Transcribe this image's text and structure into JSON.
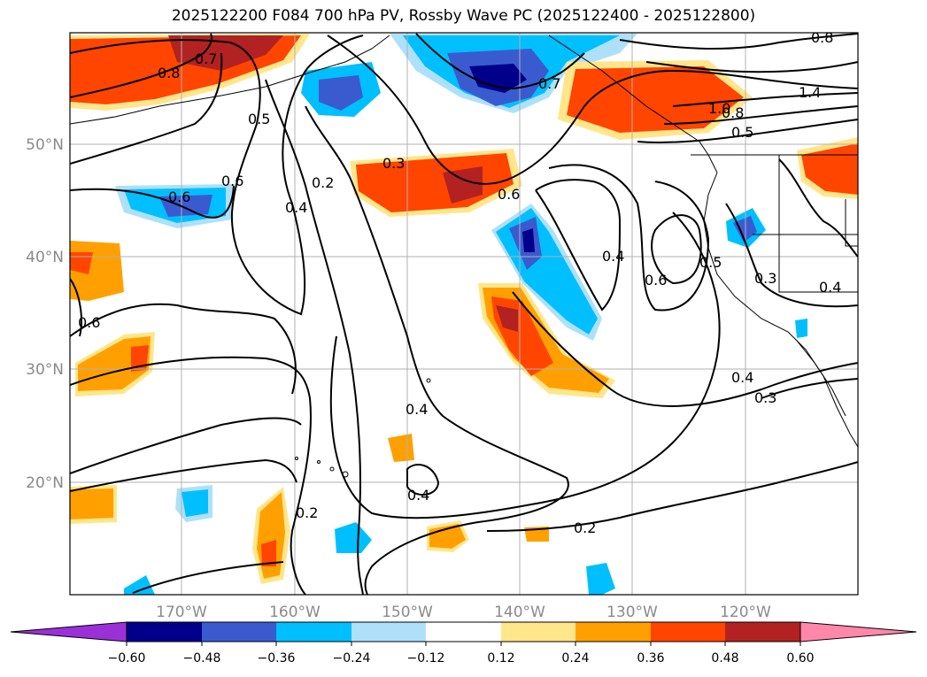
{
  "map": {
    "title": "2025122200 F084 700 hPa PV, Rossby Wave PC (2025122400 - 2025122800)",
    "lat_labels": [
      "50°N",
      "40°N",
      "30°N",
      "20°N"
    ],
    "lon_labels": [
      "170°W",
      "160°W",
      "150°W",
      "140°W",
      "130°W",
      "120°W"
    ],
    "contour_labels": [
      "0.8",
      "0.7",
      "0.5",
      "0.3",
      "0.2",
      "0.4",
      "0.6",
      "0.7",
      "1.0",
      "0.8",
      "1.4",
      "0.5",
      "0.6",
      "0.6",
      "0.4",
      "0.5",
      "0.6",
      "0.3",
      "0.4",
      "0.6",
      "0.4",
      "0.3",
      "0.4",
      "0.4",
      "0.2",
      "0.2",
      "0.8"
    ],
    "colorbar": {
      "ticks": [
        "−0.60",
        "−0.48",
        "−0.36",
        "−0.24",
        "−0.12",
        "0.12",
        "0.24",
        "0.36",
        "0.48",
        "0.60"
      ],
      "colors": [
        "#9b30d9",
        "#00008b",
        "#3a5bd0",
        "#00bfff",
        "#aee0fa",
        "#ffffff",
        "#ffe68a",
        "#ffa000",
        "#ff4500",
        "#b22222",
        "#ff88aa"
      ]
    }
  }
}
